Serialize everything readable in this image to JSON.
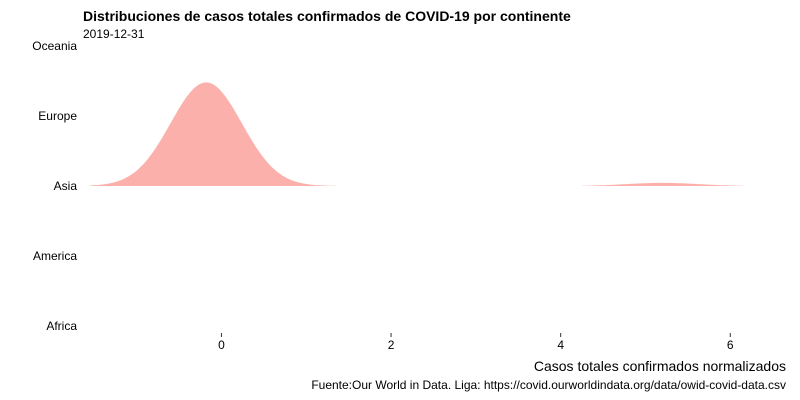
{
  "chart_data": {
    "type": "area",
    "subtype": "ridgeline",
    "title": "Distribuciones de casos totales confirmados de COVID-19 por continente",
    "subtitle": "2019-12-31",
    "xlabel": "Casos totales confirmados normalizados",
    "caption": "Fuente:Our World in Data. Liga: https://covid.ourworldindata.org/data/owid-covid-data.csv",
    "categories": [
      "Africa",
      "America",
      "Asia",
      "Europe",
      "Oceania"
    ],
    "x_ticks": [
      0,
      2,
      4,
      6
    ],
    "xlim": [
      -1.55,
      6.15
    ],
    "grid": false,
    "legend": "none",
    "fill_color": "#fbb0ab",
    "series": [
      {
        "category": "Asia",
        "components": [
          {
            "mean": -0.18,
            "sd": 0.42,
            "peak": 1.48,
            "range": [
              -1.55,
              1.35
            ]
          },
          {
            "mean": 5.2,
            "sd": 0.42,
            "peak": 0.045,
            "range": [
              4.25,
              6.15
            ]
          }
        ]
      }
    ]
  }
}
